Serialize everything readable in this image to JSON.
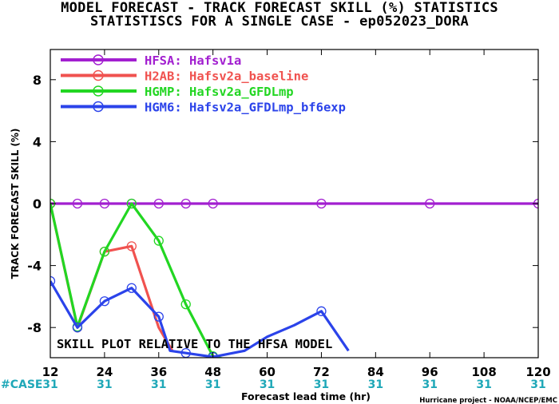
{
  "chart_data": {
    "type": "line",
    "title": "MODEL FORECAST - TRACK FORECAST SKILL (%) STATISTICS",
    "subtitle": "STATISTISCS FOR A SINGLE CASE - ep052023_DORA",
    "xlabel": "Forecast lead time (hr)",
    "ylabel": "TRACK FORECAST SKILL (%)",
    "xlim": [
      12,
      120
    ],
    "ylim": [
      -9.5,
      10.2
    ],
    "x_ticks": [
      12,
      24,
      36,
      48,
      60,
      72,
      84,
      96,
      108,
      120
    ],
    "y_ticks": [
      8,
      4,
      0,
      -4,
      -8
    ],
    "y_tick_labels": [
      "8",
      "4",
      "0",
      "-4",
      "-8"
    ],
    "annotation": "SKILL PLOT RELATIVE TO THE HFSA MODEL",
    "case_label": "#CASE",
    "case_counts": [
      "31",
      "31",
      "31",
      "31",
      "31",
      "31",
      "31",
      "31",
      "31",
      "31"
    ],
    "footer": "Hurricane project - NOAA/NCEP/EMC",
    "legend_position": "top-left",
    "series": [
      {
        "name": "HFSA: Hafsv1a",
        "color": "#a21fd0",
        "x": [
          12,
          18,
          24,
          30,
          36,
          42,
          48,
          72,
          96,
          120
        ],
        "y": [
          0,
          0,
          0,
          0,
          0,
          0,
          0,
          0,
          0,
          0
        ],
        "markers": [
          12,
          18,
          24,
          30,
          36,
          42,
          48,
          72,
          96,
          120
        ]
      },
      {
        "name": "H2AB: Hafsv2a_baseline",
        "color": "#f0524f",
        "x": [
          12,
          18,
          24,
          30,
          36,
          39
        ],
        "y": [
          0,
          -8.0,
          -3.1,
          -2.75,
          -8.0,
          -9.5
        ],
        "markers": [
          12,
          18,
          24,
          30
        ]
      },
      {
        "name": "HGMP: Hafsv2a_GFDLmp",
        "color": "#22d622",
        "x": [
          12,
          18,
          24,
          30,
          36,
          42,
          48,
          50
        ],
        "y": [
          0,
          -7.95,
          -3.1,
          0,
          -2.4,
          -6.5,
          -9.85,
          -10.0
        ],
        "markers": [
          12,
          18,
          24,
          30,
          36,
          42,
          48
        ]
      },
      {
        "name": "HGM6: Hafsv2a_GFDLmp_bf6exp",
        "color": "#2b43ea",
        "x": [
          12,
          18,
          24,
          30,
          36,
          38.5,
          48,
          55,
          60,
          66,
          72,
          78
        ],
        "y": [
          -5.0,
          -8.0,
          -6.3,
          -5.45,
          -7.3,
          -9.5,
          -9.9,
          -9.5,
          -8.6,
          -7.85,
          -6.95,
          -9.5
        ],
        "markers": [
          12,
          18,
          24,
          30,
          36,
          42,
          48,
          72
        ]
      }
    ]
  }
}
